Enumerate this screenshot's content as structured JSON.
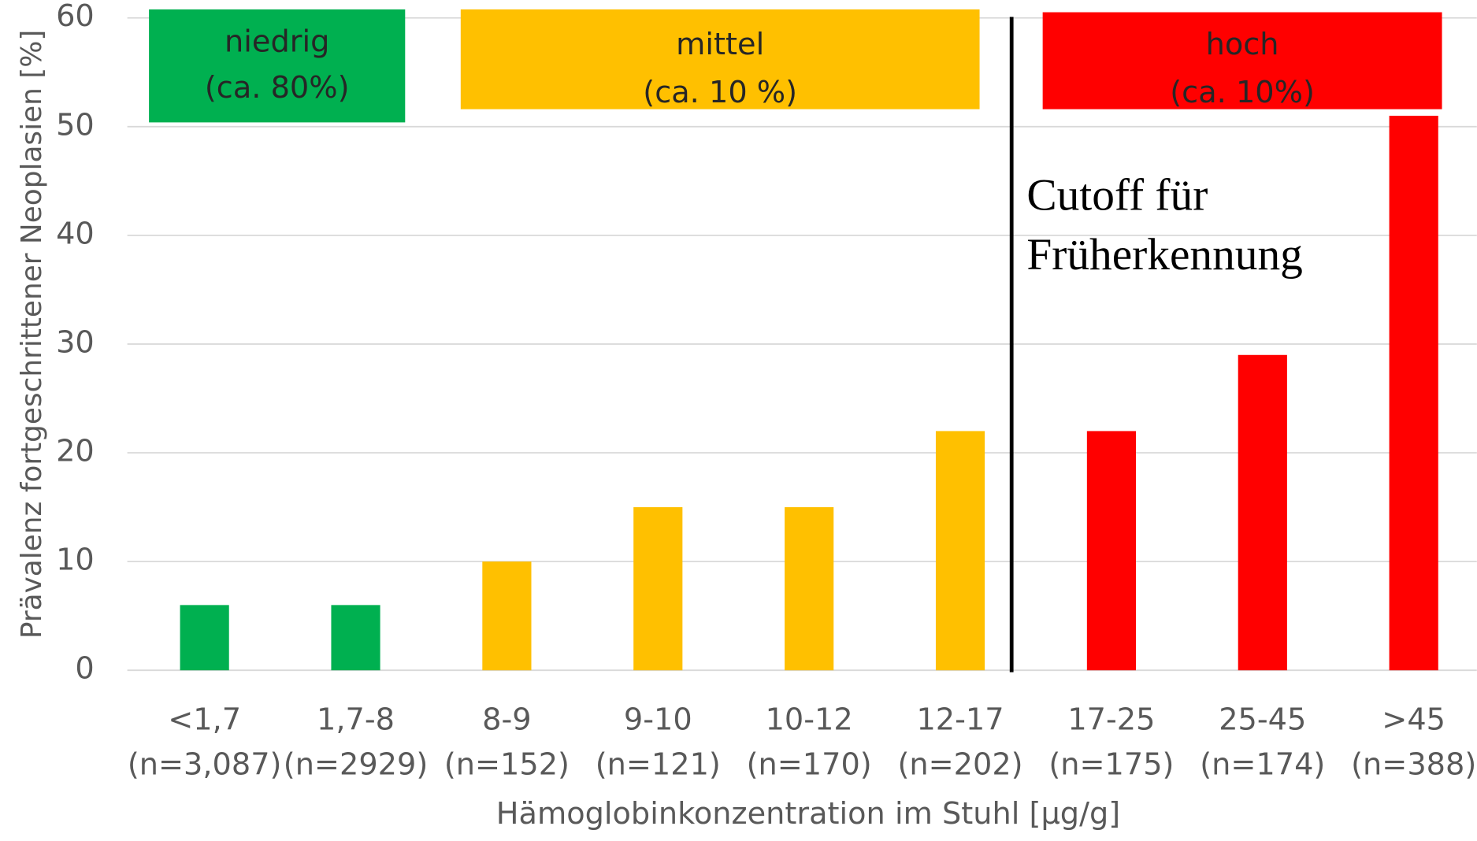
{
  "chart_data": {
    "type": "bar",
    "x_label": "Hämoglobinkonzentration im Stuhl [µg/g]",
    "y_label": "Prävalenz fortgeschrittener Neoplasien [%]",
    "categories": [
      "<1,7",
      "1,7-8",
      "8-9",
      "9-10",
      "10-12",
      "12-17",
      "17-25",
      "25-45",
      ">45"
    ],
    "category_counts": [
      "(n=3,087)",
      "(n=2929)",
      "(n=152)",
      "(n=121)",
      "(n=170)",
      "(n=202)",
      "(n=175)",
      "(n=174)",
      "(n=388)"
    ],
    "values": [
      6,
      6,
      10,
      15,
      15,
      22,
      22,
      29,
      51
    ],
    "colors": [
      "#00b050",
      "#00b050",
      "#ffc000",
      "#ffc000",
      "#ffc000",
      "#ffc000",
      "#ff0000",
      "#ff0000",
      "#ff0000"
    ],
    "ylim": [
      0,
      60
    ],
    "yticks": [
      0,
      10,
      20,
      30,
      40,
      50,
      60
    ],
    "grid": true,
    "risk_groups": [
      {
        "label": "niedrig",
        "share": "(ca. 80%)",
        "color": "#00b050"
      },
      {
        "label": "mittel",
        "share": "(ca. 10 %)",
        "color": "#ffc000"
      },
      {
        "label": "hoch",
        "share": "(ca. 10%)",
        "color": "#ff0000"
      }
    ],
    "cutoff_text": [
      "Cutoff für",
      "Früherkennung"
    ]
  }
}
